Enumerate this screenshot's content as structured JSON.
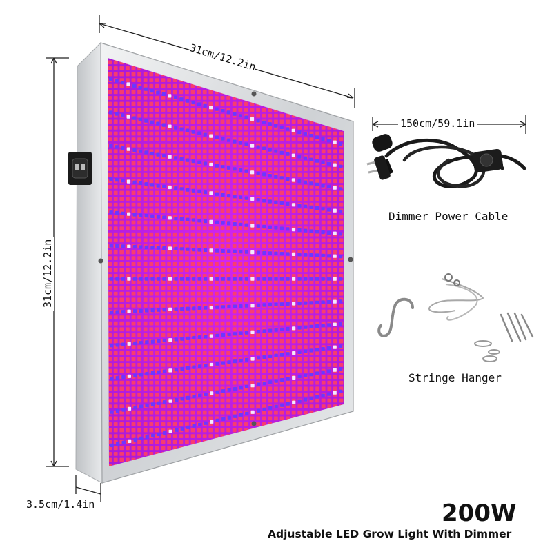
{
  "dimensions": {
    "width_label": "31cm/12.2in",
    "height_label": "31cm/12.2in",
    "depth_label": "3.5cm/1.4in",
    "cable_length_label": "150cm/59.1in"
  },
  "accessories": {
    "cable_caption": "Dimmer Power Cable",
    "hanger_caption": "Stringe Hanger"
  },
  "product": {
    "power": "200W",
    "title": "Adjustable LED Grow Light With Dimmer"
  },
  "colors": {
    "panel_glow": "#c020e0",
    "led_red": "#ff3a5a",
    "led_blue": "#6a38ff",
    "led_white": "#f4e8ff",
    "frame": "#d9dcdf"
  }
}
